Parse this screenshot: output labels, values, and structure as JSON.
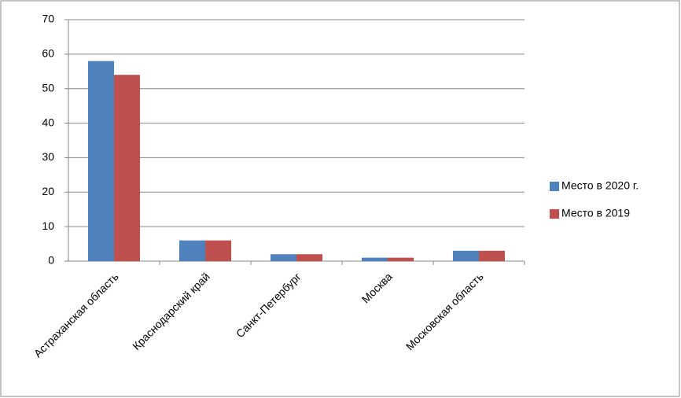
{
  "chart_data": {
    "type": "bar",
    "categories": [
      "Астраханская область",
      "Краснодарский край",
      "Санкт-Петербург",
      "Москва",
      "Московская область"
    ],
    "series": [
      {
        "name": "Место в 2020 г.",
        "color": "#4f81bd",
        "values": [
          58,
          6,
          2,
          1,
          3
        ]
      },
      {
        "name": "Место в 2019",
        "color": "#c0504d",
        "values": [
          54,
          6,
          2,
          1,
          3
        ]
      }
    ],
    "ylim": [
      0,
      70
    ],
    "yticks": [
      0,
      10,
      20,
      30,
      40,
      50,
      60,
      70
    ],
    "grid": true,
    "legend": "right"
  }
}
